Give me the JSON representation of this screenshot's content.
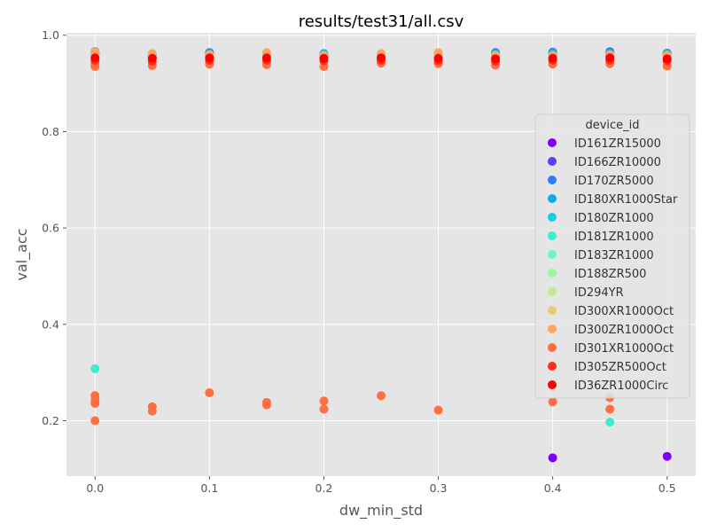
{
  "chart_data": {
    "type": "scatter",
    "title": "results/test31/all.csv",
    "xlabel": "dw_min_std",
    "ylabel": "val_acc",
    "xlim": [
      -0.025,
      0.525
    ],
    "ylim": [
      0.085,
      1.005
    ],
    "xticks": [
      "0.0",
      "0.1",
      "0.2",
      "0.3",
      "0.4",
      "0.5"
    ],
    "yticks": [
      "0.2",
      "0.4",
      "0.6",
      "0.8",
      "1.0"
    ],
    "grid": true,
    "legend_title": "device_id",
    "legend_position": "right",
    "series": [
      {
        "name": "ID161ZR15000",
        "color": "#8000ff",
        "points": [
          [
            0.0,
            0.958
          ],
          [
            0.05,
            0.955
          ],
          [
            0.1,
            0.96
          ],
          [
            0.15,
            0.958
          ],
          [
            0.2,
            0.955
          ],
          [
            0.25,
            0.957
          ],
          [
            0.3,
            0.956
          ],
          [
            0.35,
            0.958
          ],
          [
            0.4,
            0.123
          ],
          [
            0.45,
            0.957
          ],
          [
            0.5,
            0.126
          ]
        ]
      },
      {
        "name": "ID166ZR10000",
        "color": "#5a3ffd",
        "points": [
          [
            0.0,
            0.962
          ],
          [
            0.05,
            0.957
          ],
          [
            0.1,
            0.962
          ],
          [
            0.15,
            0.96
          ],
          [
            0.2,
            0.958
          ],
          [
            0.25,
            0.958
          ],
          [
            0.3,
            0.958
          ],
          [
            0.35,
            0.96
          ],
          [
            0.4,
            0.962
          ],
          [
            0.45,
            0.962
          ],
          [
            0.5,
            0.96
          ]
        ]
      },
      {
        "name": "ID170ZR5000",
        "color": "#2f7df6",
        "points": [
          [
            0.0,
            0.966
          ],
          [
            0.05,
            0.958
          ],
          [
            0.1,
            0.964
          ],
          [
            0.15,
            0.962
          ],
          [
            0.2,
            0.96
          ],
          [
            0.25,
            0.96
          ],
          [
            0.3,
            0.96
          ],
          [
            0.35,
            0.964
          ],
          [
            0.4,
            0.965
          ],
          [
            0.45,
            0.966
          ],
          [
            0.5,
            0.962
          ]
        ]
      },
      {
        "name": "ID180XR1000Star",
        "color": "#0ca9ea",
        "points": [
          [
            0.0,
            0.963
          ],
          [
            0.05,
            0.96
          ],
          [
            0.1,
            0.962
          ],
          [
            0.15,
            0.961
          ],
          [
            0.2,
            0.962
          ],
          [
            0.25,
            0.961
          ],
          [
            0.3,
            0.962
          ],
          [
            0.35,
            0.962
          ],
          [
            0.4,
            0.963
          ],
          [
            0.45,
            0.963
          ],
          [
            0.5,
            0.963
          ]
        ]
      },
      {
        "name": "ID180ZR1000",
        "color": "#1bcde5",
        "points": [
          [
            0.0,
            0.96
          ],
          [
            0.05,
            0.958
          ],
          [
            0.1,
            0.96
          ],
          [
            0.15,
            0.96
          ],
          [
            0.2,
            0.96
          ],
          [
            0.25,
            0.959
          ],
          [
            0.3,
            0.96
          ],
          [
            0.35,
            0.96
          ],
          [
            0.4,
            0.96
          ],
          [
            0.45,
            0.96
          ],
          [
            0.5,
            0.96
          ]
        ]
      },
      {
        "name": "ID181ZR1000",
        "color": "#3ceed0",
        "points": [
          [
            0.0,
            0.308
          ],
          [
            0.05,
            0.956
          ],
          [
            0.1,
            0.958
          ],
          [
            0.15,
            0.958
          ],
          [
            0.2,
            0.957
          ],
          [
            0.25,
            0.957
          ],
          [
            0.3,
            0.958
          ],
          [
            0.35,
            0.958
          ],
          [
            0.4,
            0.958
          ],
          [
            0.45,
            0.197
          ],
          [
            0.5,
            0.958
          ]
        ]
      },
      {
        "name": "ID183ZR1000",
        "color": "#69fcb4",
        "points": [
          [
            0.0,
            0.957
          ],
          [
            0.05,
            0.955
          ],
          [
            0.1,
            0.957
          ],
          [
            0.15,
            0.957
          ],
          [
            0.2,
            0.956
          ],
          [
            0.25,
            0.956
          ],
          [
            0.3,
            0.957
          ],
          [
            0.35,
            0.957
          ],
          [
            0.4,
            0.957
          ],
          [
            0.45,
            0.957
          ],
          [
            0.5,
            0.957
          ]
        ]
      },
      {
        "name": "ID188ZR500",
        "color": "#96fa9b",
        "points": [
          [
            0.0,
            0.955
          ],
          [
            0.05,
            0.953
          ],
          [
            0.1,
            0.955
          ],
          [
            0.15,
            0.955
          ],
          [
            0.2,
            0.954
          ],
          [
            0.25,
            0.954
          ],
          [
            0.3,
            0.955
          ],
          [
            0.35,
            0.955
          ],
          [
            0.4,
            0.955
          ],
          [
            0.45,
            0.955
          ],
          [
            0.5,
            0.955
          ]
        ]
      },
      {
        "name": "ID294YR",
        "color": "#c3eb8f",
        "points": [
          [
            0.0,
            0.952
          ],
          [
            0.05,
            0.95
          ],
          [
            0.1,
            0.952
          ],
          [
            0.15,
            0.952
          ],
          [
            0.2,
            0.951
          ],
          [
            0.25,
            0.951
          ],
          [
            0.3,
            0.952
          ],
          [
            0.35,
            0.952
          ],
          [
            0.4,
            0.952
          ],
          [
            0.45,
            0.952
          ],
          [
            0.5,
            0.952
          ]
        ]
      },
      {
        "name": "ID300XR1000Oct",
        "color": "#e4cd77",
        "points": [
          [
            0.0,
            0.95
          ],
          [
            0.05,
            0.948
          ],
          [
            0.1,
            0.95
          ],
          [
            0.15,
            0.95
          ],
          [
            0.2,
            0.949
          ],
          [
            0.25,
            0.949
          ],
          [
            0.3,
            0.95
          ],
          [
            0.35,
            0.95
          ],
          [
            0.4,
            0.95
          ],
          [
            0.45,
            0.95
          ],
          [
            0.5,
            0.95
          ]
        ]
      },
      {
        "name": "ID300ZR1000Oct",
        "color": "#ffa65a",
        "points": [
          [
            0.0,
            0.965
          ],
          [
            0.05,
            0.962
          ],
          [
            0.1,
            0.96
          ],
          [
            0.15,
            0.964
          ],
          [
            0.2,
            0.958
          ],
          [
            0.25,
            0.962
          ],
          [
            0.3,
            0.964
          ],
          [
            0.35,
            0.958
          ],
          [
            0.4,
            0.958
          ],
          [
            0.45,
            0.96
          ],
          [
            0.5,
            0.958
          ]
        ]
      },
      {
        "name": "ID301XR1000Oct",
        "color": "#ff6e3e",
        "points": [
          [
            0.0,
            0.935
          ],
          [
            0.0,
            0.941
          ],
          [
            0.0,
            0.2
          ],
          [
            0.0,
            0.236
          ],
          [
            0.0,
            0.243
          ],
          [
            0.0,
            0.252
          ],
          [
            0.05,
            0.937
          ],
          [
            0.05,
            0.22
          ],
          [
            0.05,
            0.229
          ],
          [
            0.1,
            0.94
          ],
          [
            0.1,
            0.258
          ],
          [
            0.15,
            0.939
          ],
          [
            0.15,
            0.233
          ],
          [
            0.15,
            0.238
          ],
          [
            0.2,
            0.935
          ],
          [
            0.2,
            0.224
          ],
          [
            0.2,
            0.241
          ],
          [
            0.25,
            0.942
          ],
          [
            0.25,
            0.252
          ],
          [
            0.3,
            0.941
          ],
          [
            0.3,
            0.222
          ],
          [
            0.35,
            0.938
          ],
          [
            0.4,
            0.94
          ],
          [
            0.4,
            0.239
          ],
          [
            0.45,
            0.941
          ],
          [
            0.45,
            0.224
          ],
          [
            0.45,
            0.248
          ],
          [
            0.5,
            0.936
          ]
        ]
      },
      {
        "name": "ID305ZR500Oct",
        "color": "#ff2f1a",
        "points": [
          [
            0.0,
            0.948
          ],
          [
            0.05,
            0.946
          ],
          [
            0.1,
            0.948
          ],
          [
            0.15,
            0.948
          ],
          [
            0.2,
            0.947
          ],
          [
            0.25,
            0.948
          ],
          [
            0.3,
            0.947
          ],
          [
            0.35,
            0.946
          ],
          [
            0.4,
            0.948
          ],
          [
            0.45,
            0.948
          ],
          [
            0.5,
            0.947
          ]
        ]
      },
      {
        "name": "ID36ZR1000Circ",
        "color": "#ff0000",
        "points": [
          [
            0.0,
            0.953
          ],
          [
            0.05,
            0.952
          ],
          [
            0.1,
            0.953
          ],
          [
            0.15,
            0.953
          ],
          [
            0.2,
            0.952
          ],
          [
            0.25,
            0.953
          ],
          [
            0.3,
            0.952
          ],
          [
            0.35,
            0.951
          ],
          [
            0.4,
            0.952
          ],
          [
            0.45,
            0.953
          ],
          [
            0.5,
            0.951
          ]
        ]
      }
    ]
  }
}
